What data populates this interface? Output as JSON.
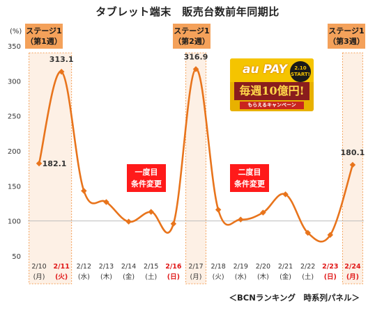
{
  "title": "タブレット端末　販売台数前年同期比",
  "footer": "＜BCNランキング　時系列パネル＞",
  "stages": [
    {
      "line1": "ステージ1",
      "line2": "（第1週）",
      "start": "2/10",
      "end": "2/11"
    },
    {
      "line1": "ステージ1",
      "line2": "（第2週）",
      "start": "2/17",
      "end": "2/17"
    },
    {
      "line1": "ステージ1",
      "line2": "（第3週）",
      "start": "2/24",
      "end": "2/24"
    }
  ],
  "notes": [
    {
      "line1": "一度目",
      "line2": "条件変更"
    },
    {
      "line1": "二度目",
      "line2": "条件変更"
    }
  ],
  "promo": {
    "brand": "au PAY",
    "badge_line1": "2.10",
    "badge_line2": "START!",
    "main": "毎週10億円!",
    "sub": "もらえるキャンペーン"
  },
  "chart_data": {
    "type": "line",
    "ylabel": "(%)",
    "ylim": [
      50,
      350
    ],
    "yticks": [
      50,
      100,
      150,
      200,
      250,
      300,
      350
    ],
    "grid": false,
    "categories": [
      "2/10",
      "2/11",
      "2/12",
      "2/13",
      "2/14",
      "2/15",
      "2/16",
      "2/17",
      "2/18",
      "2/19",
      "2/20",
      "2/21",
      "2/22",
      "2/23",
      "2/24"
    ],
    "weekdays": [
      "(月)",
      "(火)",
      "(水)",
      "(木)",
      "(金)",
      "(土)",
      "(日)",
      "(月)",
      "(火)",
      "(水)",
      "(木)",
      "(金)",
      "(土)",
      "(日)",
      "(月)"
    ],
    "highlight_categories": [
      "2/11",
      "2/16",
      "2/23",
      "2/24"
    ],
    "series": [
      {
        "color": "#e8741c",
        "values": [
          182.1,
          313.1,
          143,
          127,
          99,
          113,
          96,
          316.9,
          116,
          102,
          112,
          138,
          83,
          80,
          180.1
        ]
      }
    ],
    "data_labels": [
      {
        "index": 0,
        "text": "182.1"
      },
      {
        "index": 1,
        "text": "313.1"
      },
      {
        "index": 7,
        "text": "316.9"
      },
      {
        "index": 14,
        "text": "180.1"
      }
    ],
    "reference_line": 100
  },
  "colors": {
    "line": "#e8741c",
    "stage_fill": "#fbe3cf",
    "stage_border": "#f4a15a",
    "stage_label": "#f4a15a",
    "note": "#ff1a1a",
    "axis_text": "#333333",
    "highlight_text": "#e01818"
  }
}
